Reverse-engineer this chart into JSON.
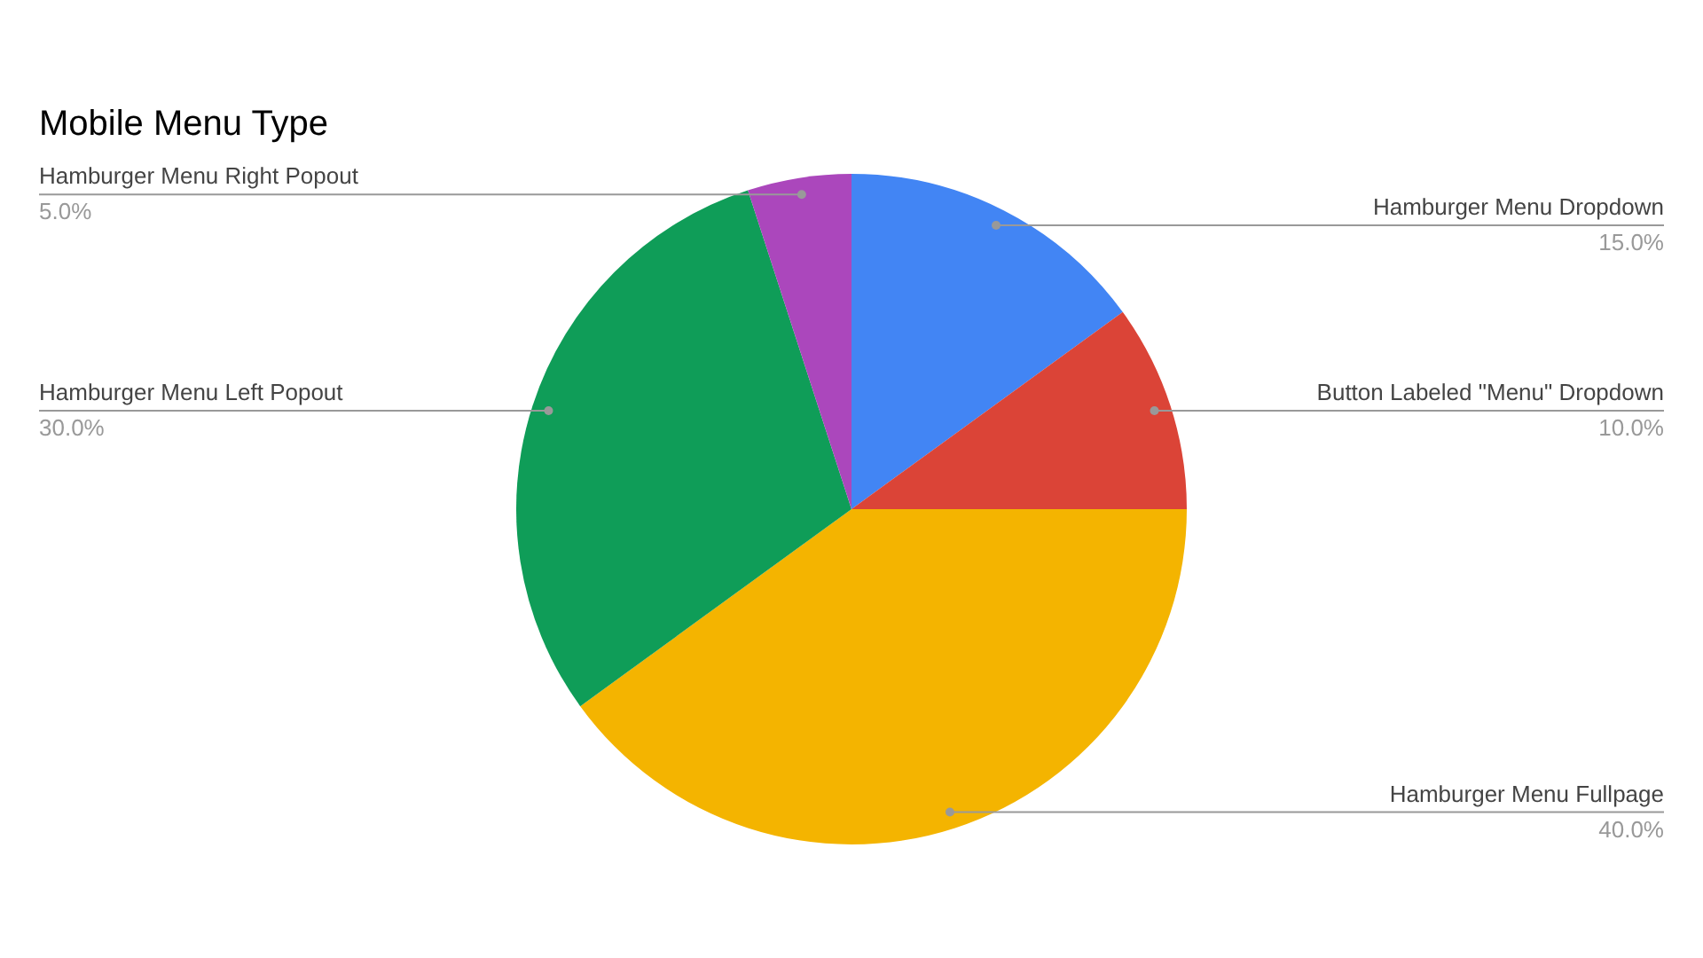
{
  "chart_data": {
    "type": "pie",
    "title": "Mobile Menu Type",
    "categories": [
      "Hamburger Menu Dropdown",
      "Button Labeled \"Menu\" Dropdown",
      "Hamburger Menu Fullpage",
      "Hamburger Menu Left Popout",
      "Hamburger Menu Right Popout"
    ],
    "values": [
      15,
      10,
      40,
      30,
      5
    ],
    "value_labels": [
      "15.0%",
      "10.0%",
      "40.0%",
      "30.0%",
      "5.0%"
    ],
    "colors": [
      "#4285f4",
      "#db4437",
      "#f4b400",
      "#0f9d58",
      "#ab47bc"
    ],
    "legend": false
  }
}
